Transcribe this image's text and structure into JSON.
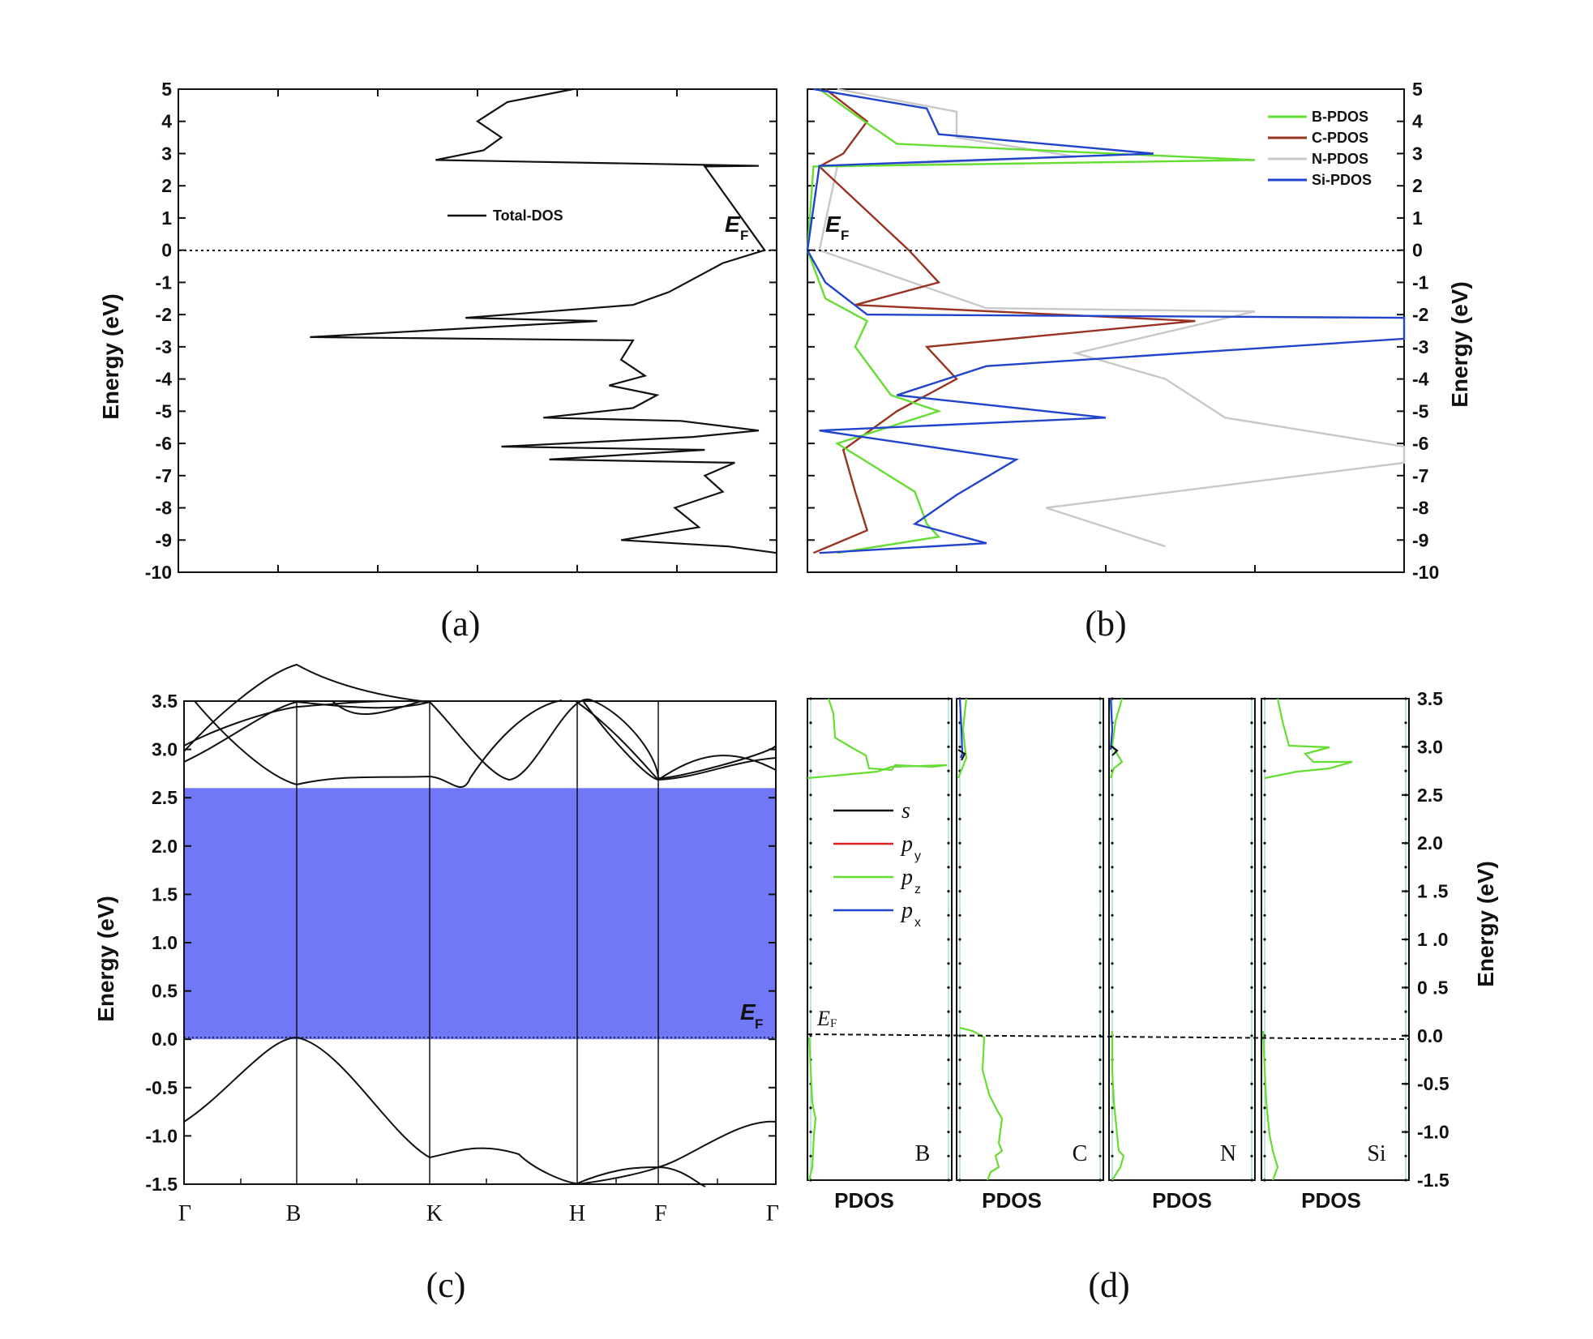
{
  "chart_data": [
    {
      "panel": "(a)",
      "type": "line",
      "ylabel": "Energy (eV)",
      "ylim": [
        -10,
        5
      ],
      "yticks": [
        "5",
        "4",
        "3",
        "2",
        "1",
        "0",
        "-1",
        "-2",
        "-3",
        "-4",
        "-5",
        "-6",
        "-7",
        "-8",
        "-9",
        "-10"
      ],
      "legend": [
        "Total-DOS"
      ],
      "legend_position": "middle-left",
      "fermi_label": {
        "main": "E",
        "sub": "F"
      },
      "fermi_level": 0,
      "series": [
        {
          "name": "Total-DOS",
          "color": "#111111",
          "points": [
            [
              0.66,
              5
            ],
            [
              0.55,
              4.6
            ],
            [
              0.5,
              4.0
            ],
            [
              0.54,
              3.5
            ],
            [
              0.51,
              3.1
            ],
            [
              0.43,
              2.8
            ],
            [
              0.97,
              2.62
            ],
            [
              0.88,
              2.6
            ],
            [
              0.98,
              0.0
            ],
            [
              0.91,
              -0.4
            ],
            [
              0.82,
              -1.3
            ],
            [
              0.76,
              -1.7
            ],
            [
              0.48,
              -2.1
            ],
            [
              0.7,
              -2.2
            ],
            [
              0.22,
              -2.7
            ],
            [
              0.76,
              -2.8
            ],
            [
              0.74,
              -3.4
            ],
            [
              0.78,
              -3.9
            ],
            [
              0.72,
              -4.2
            ],
            [
              0.8,
              -4.5
            ],
            [
              0.76,
              -4.9
            ],
            [
              0.61,
              -5.2
            ],
            [
              0.84,
              -5.3
            ],
            [
              0.97,
              -5.6
            ],
            [
              0.86,
              -5.8
            ],
            [
              0.54,
              -6.1
            ],
            [
              0.88,
              -6.2
            ],
            [
              0.62,
              -6.5
            ],
            [
              0.93,
              -6.6
            ],
            [
              0.88,
              -7.0
            ],
            [
              0.91,
              -7.5
            ],
            [
              0.83,
              -8.0
            ],
            [
              0.87,
              -8.6
            ],
            [
              0.74,
              -9.0
            ],
            [
              0.92,
              -9.2
            ],
            [
              1.0,
              -9.4
            ]
          ]
        }
      ]
    },
    {
      "panel": "(b)",
      "type": "line",
      "ylabel": "Energy (eV)",
      "ylim": [
        -10,
        5
      ],
      "yticks": [
        "5",
        "4",
        "3",
        "2",
        "1",
        "0",
        "-1",
        "-2",
        "-3",
        "-4",
        "-5",
        "-6",
        "-7",
        "-8",
        "-9",
        "-10"
      ],
      "legend": [
        "B-PDOS",
        "C-PDOS",
        "N-PDOS",
        "Si-PDOS"
      ],
      "legend_position": "top-right",
      "fermi_label": {
        "main": "E",
        "sub": "F"
      },
      "fermi_level": 0,
      "series": [
        {
          "name": "B-PDOS",
          "color": "#66dd33",
          "points": [
            [
              0.02,
              5
            ],
            [
              0.08,
              4.2
            ],
            [
              0.15,
              3.3
            ],
            [
              0.75,
              2.8
            ],
            [
              0.2,
              2.65
            ],
            [
              0.01,
              2.6
            ],
            [
              0.0,
              0
            ],
            [
              0.03,
              -1.5
            ],
            [
              0.1,
              -2.2
            ],
            [
              0.08,
              -3.0
            ],
            [
              0.14,
              -4.5
            ],
            [
              0.22,
              -5.0
            ],
            [
              0.05,
              -6.0
            ],
            [
              0.18,
              -7.5
            ],
            [
              0.2,
              -8.5
            ],
            [
              0.22,
              -8.9
            ],
            [
              0.05,
              -9.4
            ]
          ]
        },
        {
          "name": "C-PDOS",
          "color": "#993322",
          "points": [
            [
              0.03,
              5
            ],
            [
              0.1,
              4.0
            ],
            [
              0.06,
              3.0
            ],
            [
              0.02,
              2.6
            ],
            [
              0.17,
              0
            ],
            [
              0.22,
              -1.0
            ],
            [
              0.08,
              -1.7
            ],
            [
              0.65,
              -2.2
            ],
            [
              0.2,
              -3.0
            ],
            [
              0.25,
              -4.0
            ],
            [
              0.15,
              -5.0
            ],
            [
              0.06,
              -6.2
            ],
            [
              0.08,
              -7.5
            ],
            [
              0.1,
              -8.7
            ],
            [
              0.01,
              -9.4
            ]
          ]
        },
        {
          "name": "N-PDOS",
          "color": "#c8c8c8",
          "points": [
            [
              0.05,
              5
            ],
            [
              0.25,
              4.3
            ],
            [
              0.25,
              3.5
            ],
            [
              0.45,
              2.9
            ],
            [
              0.05,
              2.6
            ],
            [
              0.02,
              0
            ],
            [
              0.3,
              -1.8
            ],
            [
              0.75,
              -1.9
            ],
            [
              0.45,
              -3.2
            ],
            [
              0.6,
              -4.0
            ],
            [
              0.7,
              -5.2
            ],
            [
              1.0,
              -6.1
            ],
            [
              1.0,
              -6.6
            ],
            [
              0.4,
              -8.0
            ],
            [
              0.55,
              -8.9
            ],
            [
              0.6,
              -9.2
            ]
          ]
        },
        {
          "name": "Si-PDOS",
          "color": "#2244cc",
          "points": [
            [
              0.01,
              5
            ],
            [
              0.2,
              4.4
            ],
            [
              0.22,
              3.6
            ],
            [
              0.58,
              3.0
            ],
            [
              0.02,
              2.62
            ],
            [
              0.0,
              0
            ],
            [
              0.03,
              -1.0
            ],
            [
              0.1,
              -2.0
            ],
            [
              1.0,
              -2.1
            ],
            [
              1.0,
              -2.75
            ],
            [
              0.3,
              -3.6
            ],
            [
              0.15,
              -4.5
            ],
            [
              0.5,
              -5.2
            ],
            [
              0.02,
              -5.6
            ],
            [
              0.35,
              -6.5
            ],
            [
              0.25,
              -7.6
            ],
            [
              0.18,
              -8.5
            ],
            [
              0.3,
              -9.1
            ],
            [
              0.02,
              -9.4
            ]
          ]
        }
      ]
    },
    {
      "panel": "(c)",
      "type": "line",
      "ylabel": "Energy (eV)",
      "ylim": [
        -1.5,
        3.5
      ],
      "yticks": [
        "3.5",
        "3.0",
        "2.5",
        "2.0",
        "1.5",
        "1.0",
        "0.5",
        "0.0",
        "-0.5",
        "-1.0",
        "-1.5"
      ],
      "x_kpoints": [
        "Γ",
        "B",
        "K",
        "H",
        "F",
        "Γ"
      ],
      "band_gap": {
        "from": 0.0,
        "to": 2.6,
        "color": "#7178f7"
      },
      "fermi_label": {
        "main": "E",
        "sub": "F"
      },
      "fermi_level": 0
    },
    {
      "panel": "(d)",
      "type": "line",
      "ylabel": "Energy (eV)",
      "ylim": [
        -1.5,
        3.5
      ],
      "yticks": [
        "3.5",
        "3.0",
        "2.5",
        "2.0",
        "1 .5",
        "1 .0",
        "0 .5",
        "0.0",
        "-0.5",
        "-1.0",
        "-1.5"
      ],
      "xlabel": "PDOS",
      "subpanels": [
        "B",
        "C",
        "N",
        "Si"
      ],
      "legend": [
        {
          "main": "s",
          "sub": "",
          "color": "#111111"
        },
        {
          "main": "p",
          "sub": "y",
          "color": "#dd2222"
        },
        {
          "main": "p",
          "sub": "z",
          "color": "#66dd33"
        },
        {
          "main": "p",
          "sub": "x",
          "color": "#2244cc"
        }
      ],
      "fermi_label": {
        "main": "E",
        "sub": "F"
      },
      "fermi_level": 0
    }
  ]
}
